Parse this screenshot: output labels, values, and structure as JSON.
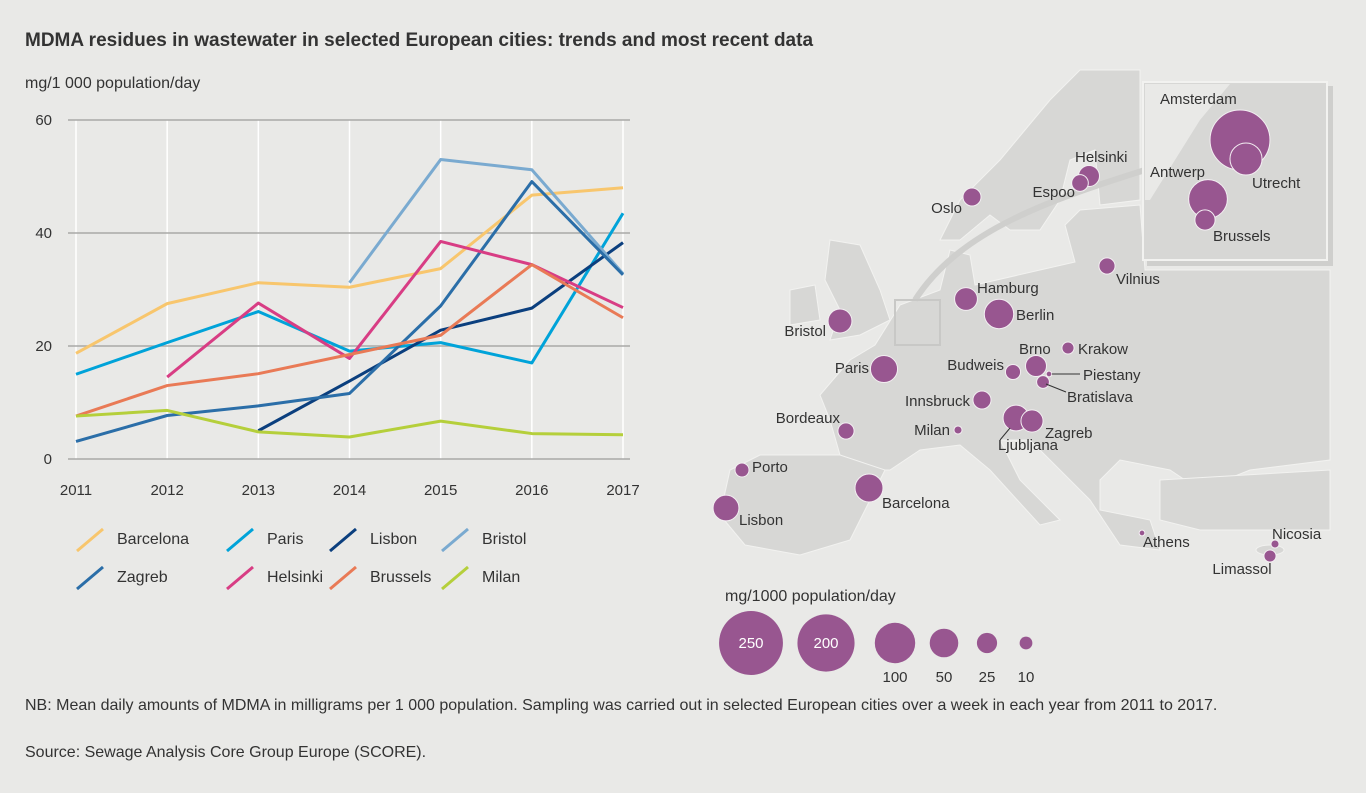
{
  "title": "MDMA residues in wastewater in selected European cities: trends and most recent data",
  "chart_data": [
    {
      "type": "line",
      "ylabel": "mg/1 000 population/day",
      "x": [
        "2011",
        "2012",
        "2013",
        "2014",
        "2015",
        "2016",
        "2017"
      ],
      "yticks": [
        "0",
        "20",
        "40",
        "60"
      ],
      "ylim": [
        0,
        60
      ],
      "grid": true,
      "legend": "bottom",
      "series": [
        {
          "name": "Barcelona",
          "color": "#f8c66d",
          "values": [
            18.7,
            27.5,
            31.2,
            30.4,
            33.7,
            46.7,
            48.0
          ]
        },
        {
          "name": "Paris",
          "color": "#00a3d9",
          "values": [
            15.0,
            20.6,
            26.1,
            19.1,
            20.6,
            17.0,
            43.5
          ]
        },
        {
          "name": "Lisbon",
          "color": "#0b3f7e",
          "values": [
            null,
            null,
            5.0,
            13.8,
            22.8,
            26.7,
            38.3
          ]
        },
        {
          "name": "Bristol",
          "color": "#7aaad0",
          "values": [
            null,
            null,
            null,
            31.2,
            53.0,
            51.2,
            32.8
          ]
        },
        {
          "name": "Zagreb",
          "color": "#2b6ea8",
          "values": [
            3.1,
            7.7,
            9.4,
            11.6,
            27.1,
            49.1,
            32.6
          ]
        },
        {
          "name": "Helsinki",
          "color": "#d83d84",
          "values": [
            null,
            14.5,
            27.6,
            17.8,
            38.5,
            34.4,
            26.8
          ]
        },
        {
          "name": "Brussels",
          "color": "#e97a56",
          "values": [
            7.6,
            13.0,
            15.1,
            18.5,
            21.9,
            34.4,
            25.0
          ]
        },
        {
          "name": "Milan",
          "color": "#b5cf3b",
          "values": [
            7.6,
            8.6,
            4.8,
            3.9,
            6.7,
            4.5,
            4.3
          ]
        }
      ]
    },
    {
      "type": "scatter",
      "subtype": "proportional-symbol-map",
      "unit": "mg/1000 population/day",
      "color": "#985690",
      "size_legend": [
        "250",
        "200",
        "100",
        "50",
        "25",
        "10"
      ],
      "cities": [
        {
          "name": "Amsterdam",
          "value": 220
        },
        {
          "name": "Utrecht",
          "value": 63
        },
        {
          "name": "Antwerp",
          "value": 92
        },
        {
          "name": "Brussels",
          "value": 25
        },
        {
          "name": "Helsinki",
          "value": 27
        },
        {
          "name": "Espoo",
          "value": 17
        },
        {
          "name": "Oslo",
          "value": 20
        },
        {
          "name": "Vilnius",
          "value": 16
        },
        {
          "name": "Hamburg",
          "value": 32
        },
        {
          "name": "Berlin",
          "value": 53
        },
        {
          "name": "Bristol",
          "value": 35
        },
        {
          "name": "Paris",
          "value": 45
        },
        {
          "name": "Brno",
          "value": 27
        },
        {
          "name": "Krakow",
          "value": 9
        },
        {
          "name": "Budweis",
          "value": 14
        },
        {
          "name": "Piestany",
          "value": 2
        },
        {
          "name": "Bratislava",
          "value": 10
        },
        {
          "name": "Innsbruck",
          "value": 20
        },
        {
          "name": "Milan",
          "value": 4
        },
        {
          "name": "Ljubljana",
          "value": 41
        },
        {
          "name": "Zagreb",
          "value": 30
        },
        {
          "name": "Bordeaux",
          "value": 16
        },
        {
          "name": "Porto",
          "value": 12
        },
        {
          "name": "Lisbon",
          "value": 41
        },
        {
          "name": "Barcelona",
          "value": 48
        },
        {
          "name": "Athens",
          "value": 2
        },
        {
          "name": "Nicosia",
          "value": 4
        },
        {
          "name": "Limassol",
          "value": 9
        }
      ]
    }
  ],
  "notes": {
    "nb": "NB: Mean daily amounts of MDMA in milligrams per 1 000 population. Sampling was carried out in selected European cities over a week in each year from 2011 to 2017.",
    "source": "Source: Sewage Analysis Core Group Europe (SCORE)."
  }
}
